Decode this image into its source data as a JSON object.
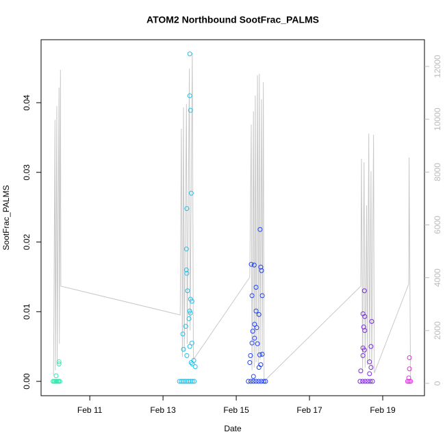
{
  "chart_data": {
    "type": "scatter",
    "title": "ATOM2 Northbound SootFrac_PALMS",
    "xlabel": "Date",
    "ylabel": "SootFrac_PALMS",
    "xlim": [
      9.67,
      20.14
    ],
    "xticks": [
      {
        "value": 11,
        "label": "Feb 11"
      },
      {
        "value": 13,
        "label": "Feb 13"
      },
      {
        "value": 15,
        "label": "Feb 15"
      },
      {
        "value": 17,
        "label": "Feb 17"
      },
      {
        "value": 19,
        "label": "Feb 19"
      }
    ],
    "ylim": [
      -0.00206,
      0.04904
    ],
    "yticks": [
      {
        "value": 0,
        "label": "0.00"
      },
      0.01,
      0.02,
      0.03,
      0.04
    ],
    "y2lim": [
      -467,
      13011
    ],
    "y2ticks": [
      0,
      2000,
      4000,
      6000,
      8000,
      10000,
      12000
    ],
    "y2color": "#bbbbbb",
    "series": [
      {
        "color": "#33e6b0",
        "x": [
          10.0,
          10.03,
          10.06,
          10.09,
          10.12,
          10.15,
          10.18,
          10.08,
          10.16,
          10.16
        ],
        "values": [
          0,
          0,
          0,
          0,
          0,
          0,
          0,
          0.0008,
          0.0028,
          0.0025
        ]
      },
      {
        "color": "#20c0e8",
        "x": [
          13.45,
          13.5,
          13.55,
          13.6,
          13.65,
          13.7,
          13.75,
          13.8,
          13.85,
          13.73,
          13.73,
          13.75,
          13.77,
          13.65,
          13.64,
          13.64,
          13.65,
          13.67,
          13.75,
          13.79,
          13.73,
          13.75,
          13.71,
          13.62,
          13.54,
          13.79,
          13.73,
          13.56,
          13.65,
          13.84,
          13.77,
          13.8,
          13.88
        ],
        "values": [
          0,
          0,
          0,
          0,
          0,
          0,
          0,
          0,
          0,
          0.047,
          0.041,
          0.0389,
          0.027,
          0.0248,
          0.019,
          0.016,
          0.0155,
          0.013,
          0.0118,
          0.0115,
          0.0101,
          0.0098,
          0.009,
          0.0079,
          0.0068,
          0.0055,
          0.005,
          0.0046,
          0.0037,
          0.003,
          0.0027,
          0.0025,
          0.0021
        ]
      },
      {
        "color": "#2040f0",
        "x": [
          15.33,
          15.4,
          15.47,
          15.54,
          15.61,
          15.68,
          15.75,
          15.8,
          15.65,
          15.41,
          15.49,
          15.67,
          15.69,
          15.54,
          15.43,
          15.71,
          15.54,
          15.62,
          15.5,
          15.56,
          15.45,
          15.5,
          15.43,
          15.58,
          15.64,
          15.39,
          15.71,
          15.37,
          15.67,
          15.62,
          15.47
        ],
        "values": [
          0,
          0,
          0,
          0,
          0,
          0,
          0,
          0,
          0.0218,
          0.0168,
          0.0167,
          0.0164,
          0.0159,
          0.0135,
          0.0123,
          0.0123,
          0.0101,
          0.0096,
          0.0082,
          0.0077,
          0.0072,
          0.0062,
          0.0055,
          0.0054,
          0.0038,
          0.0037,
          0.0039,
          0.0027,
          0.0024,
          0.002,
          0.0007
        ]
      },
      {
        "color": "#7a2ad8",
        "x": [
          18.38,
          18.45,
          18.52,
          18.59,
          18.66,
          18.72,
          18.5,
          18.46,
          18.51,
          18.7,
          18.48,
          18.51,
          18.68,
          18.46,
          18.5,
          18.46,
          18.64,
          18.68,
          18.4,
          18.64
        ],
        "values": [
          0,
          0,
          0,
          0,
          0,
          0,
          0.013,
          0.0097,
          0.0093,
          0.0086,
          0.0078,
          0.0073,
          0.005,
          0.0048,
          0.0045,
          0.0037,
          0.0028,
          0.002,
          0.0015,
          0.0011
        ]
      },
      {
        "color": "#e030e0",
        "x": [
          19.68,
          19.72,
          19.76,
          19.73,
          19.73,
          19.71
        ],
        "values": [
          0,
          0,
          0,
          0.0034,
          0.0018,
          0.0005
        ]
      },
      {
        "type": "line",
        "axis": "y2",
        "color": "#c8c8c8",
        "x": [
          10.01,
          10.05,
          10.06,
          10.1,
          10.11,
          10.16,
          10.17,
          10.2,
          10.21,
          13.47,
          13.5,
          13.53,
          13.56,
          13.58,
          13.64,
          13.66,
          13.72,
          13.74,
          13.8,
          13.83,
          15.37,
          15.41,
          15.43,
          15.47,
          15.49,
          15.52,
          15.54,
          15.58,
          15.6,
          15.63,
          15.65,
          15.69,
          15.71,
          15.74,
          15.76,
          18.4,
          18.42,
          18.45,
          18.49,
          18.52,
          18.56,
          18.58,
          18.62,
          18.64,
          18.68,
          18.7,
          18.75,
          18.77,
          19.71,
          19.72,
          19.76
        ],
        "values": [
          300,
          9980,
          500,
          10500,
          800,
          11200,
          1500,
          11870,
          3680,
          2590,
          9640,
          1000,
          10450,
          1200,
          10580,
          1500,
          11920,
          2000,
          12520,
          900,
          4020,
          9800,
          500,
          10300,
          600,
          10900,
          800,
          11670,
          700,
          11720,
          900,
          10760,
          1000,
          11400,
          80,
          3680,
          8500,
          500,
          8370,
          600,
          6740,
          700,
          9460,
          800,
          8030,
          500,
          9410,
          390,
          3760,
          8550,
          130
        ]
      }
    ]
  }
}
